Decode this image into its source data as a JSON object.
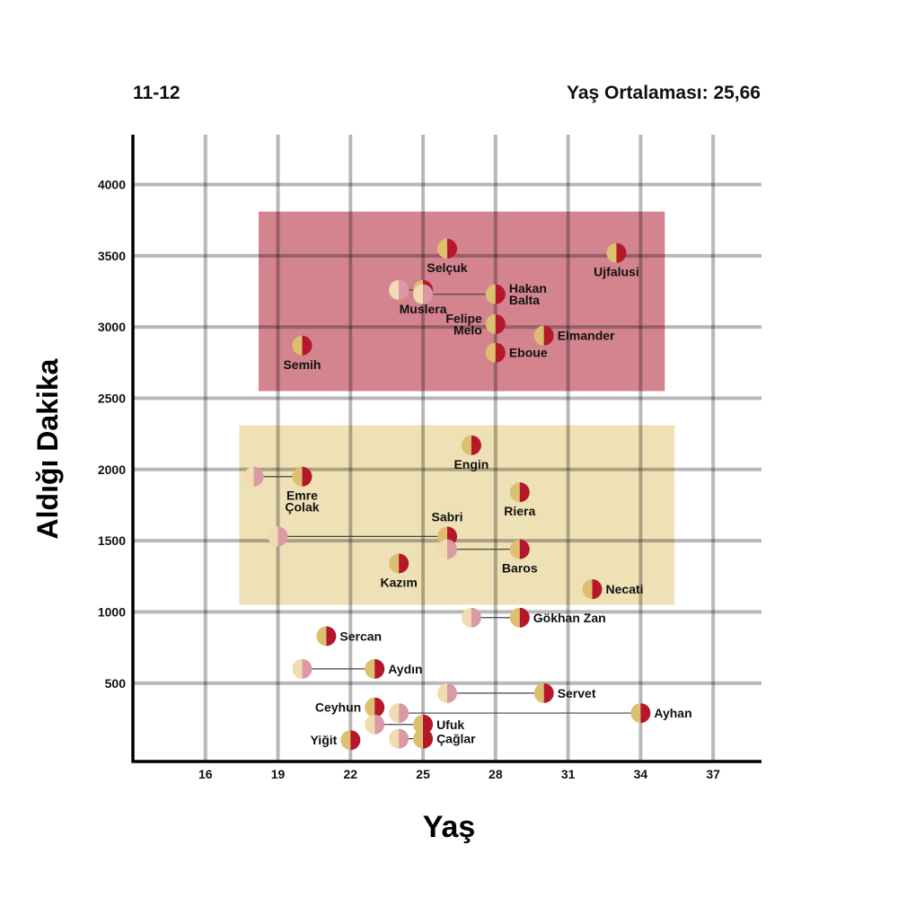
{
  "header": {
    "season": "11-12",
    "avg_label": "Yaş Ortalaması:",
    "avg_value": "25,66"
  },
  "colors": {
    "red": "#b5172b",
    "gold": "#dcc070",
    "ghost_red": "#d99aa6",
    "ghost_gold": "#f0dcb0",
    "band_red": "#d4848f",
    "band_gold": "#efe1b6",
    "grid": "#b8b8b8",
    "axis": "#000000"
  },
  "chart_data": {
    "type": "scatter",
    "title": "11-12",
    "subtitle": "Yaş Ortalaması: 25,66",
    "xlabel": "Yaş",
    "ylabel": "Aldığı Dakika",
    "xlim": [
      13,
      39
    ],
    "ylim": [
      -50,
      4350
    ],
    "xticks": [
      16,
      19,
      22,
      25,
      28,
      31,
      34,
      37
    ],
    "yticks": [
      500,
      1000,
      1500,
      2000,
      2500,
      3000,
      3500,
      4000
    ],
    "grid": true,
    "bands": [
      {
        "name": "high-minutes-band",
        "x0": 18.2,
        "x1": 35.0,
        "y0": 2550,
        "y1": 3810,
        "color": "band_red"
      },
      {
        "name": "mid-minutes-band",
        "x0": 17.4,
        "x1": 35.4,
        "y0": 1050,
        "y1": 2310,
        "color": "band_gold"
      }
    ],
    "players": [
      {
        "name": "Selçuk",
        "lines": [
          "Selçuk"
        ],
        "age": 26,
        "minutes": 3550,
        "label_pos": "below"
      },
      {
        "name": "Ujfalusi",
        "lines": [
          "Ujfalusi"
        ],
        "age": 33,
        "minutes": 3520,
        "label_pos": "below"
      },
      {
        "name": "Muslera",
        "lines": [
          "Muslera"
        ],
        "age": 25,
        "minutes": 3260,
        "from_age": 24,
        "label_pos": "below"
      },
      {
        "name": "Hakan Balta",
        "lines": [
          "Hakan",
          "Balta"
        ],
        "age": 28,
        "minutes": 3230,
        "from_age": 25,
        "label_pos": "right"
      },
      {
        "name": "Felipe Melo",
        "lines": [
          "Felipe",
          "Melo"
        ],
        "age": 28,
        "minutes": 3020,
        "label_pos": "left"
      },
      {
        "name": "Elmander",
        "lines": [
          "Elmander"
        ],
        "age": 30,
        "minutes": 2940,
        "label_pos": "right"
      },
      {
        "name": "Semih",
        "lines": [
          "Semih"
        ],
        "age": 20,
        "minutes": 2870,
        "label_pos": "below"
      },
      {
        "name": "Eboue",
        "lines": [
          "Eboue"
        ],
        "age": 28,
        "minutes": 2820,
        "label_pos": "right"
      },
      {
        "name": "Engin",
        "lines": [
          "Engin"
        ],
        "age": 27,
        "minutes": 2170,
        "label_pos": "below"
      },
      {
        "name": "Emre Çolak",
        "lines": [
          "Emre",
          "Çolak"
        ],
        "age": 20,
        "minutes": 1950,
        "from_age": 18,
        "label_pos": "below"
      },
      {
        "name": "Riera",
        "lines": [
          "Riera"
        ],
        "age": 29,
        "minutes": 1840,
        "label_pos": "below"
      },
      {
        "name": "Sabri",
        "lines": [
          "Sabri"
        ],
        "age": 26,
        "minutes": 1530,
        "from_age": 19,
        "label_pos": "above"
      },
      {
        "name": "Baros",
        "lines": [
          "Baros"
        ],
        "age": 29,
        "minutes": 1440,
        "from_age": 26,
        "label_pos": "below"
      },
      {
        "name": "Kazım",
        "lines": [
          "Kazım"
        ],
        "age": 24,
        "minutes": 1340,
        "label_pos": "below"
      },
      {
        "name": "Necati",
        "lines": [
          "Necati"
        ],
        "age": 32,
        "minutes": 1160,
        "label_pos": "right"
      },
      {
        "name": "Gökhan Zan",
        "lines": [
          "Gökhan Zan"
        ],
        "age": 29,
        "minutes": 960,
        "from_age": 27,
        "label_pos": "right"
      },
      {
        "name": "Sercan",
        "lines": [
          "Sercan"
        ],
        "age": 21,
        "minutes": 830,
        "label_pos": "right"
      },
      {
        "name": "Aydın",
        "lines": [
          "Aydın"
        ],
        "age": 23,
        "minutes": 600,
        "from_age": 20,
        "label_pos": "right"
      },
      {
        "name": "Servet",
        "lines": [
          "Servet"
        ],
        "age": 30,
        "minutes": 430,
        "from_age": 26,
        "label_pos": "right"
      },
      {
        "name": "Ceyhun",
        "lines": [
          "Ceyhun"
        ],
        "age": 23,
        "minutes": 330,
        "label_pos": "left"
      },
      {
        "name": "Ayhan",
        "lines": [
          "Ayhan"
        ],
        "age": 34,
        "minutes": 290,
        "from_age": 24,
        "label_pos": "right"
      },
      {
        "name": "Ufuk",
        "lines": [
          "Ufuk"
        ],
        "age": 25,
        "minutes": 210,
        "from_age": 23,
        "label_pos": "right"
      },
      {
        "name": "Çağlar",
        "lines": [
          "Çağlar"
        ],
        "age": 25,
        "minutes": 110,
        "from_age": 24,
        "label_pos": "right"
      },
      {
        "name": "Yiğit",
        "lines": [
          "Yiğit"
        ],
        "age": 22,
        "minutes": 100,
        "label_pos": "left"
      }
    ]
  }
}
